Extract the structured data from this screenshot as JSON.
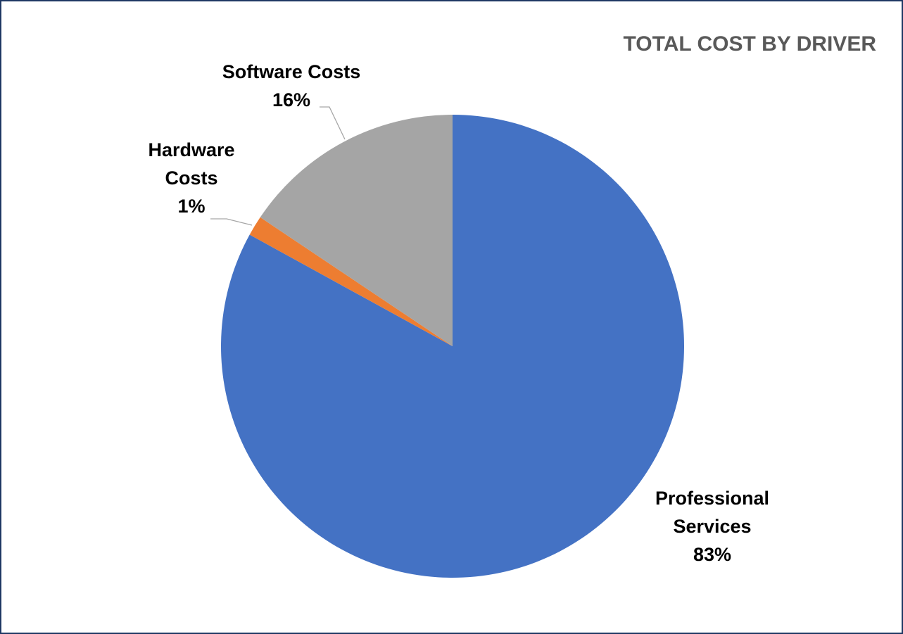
{
  "chart_data": {
    "type": "pie",
    "title": "TOTAL COST BY DRIVER",
    "start_angle_deg": 0,
    "direction": "clockwise",
    "slices": [
      {
        "name": "Professional Services",
        "value": 83,
        "label_lines": [
          "Professional",
          "Services",
          "83%"
        ],
        "color": "#4472c4"
      },
      {
        "name": "Hardware Costs",
        "value": 1.4,
        "label_lines": [
          "Hardware",
          "Costs",
          "1%"
        ],
        "color": "#ed7d31"
      },
      {
        "name": "Software Costs",
        "value": 15.6,
        "label_lines": [
          "Software Costs",
          "16%"
        ],
        "color": "#a5a5a5"
      }
    ]
  }
}
